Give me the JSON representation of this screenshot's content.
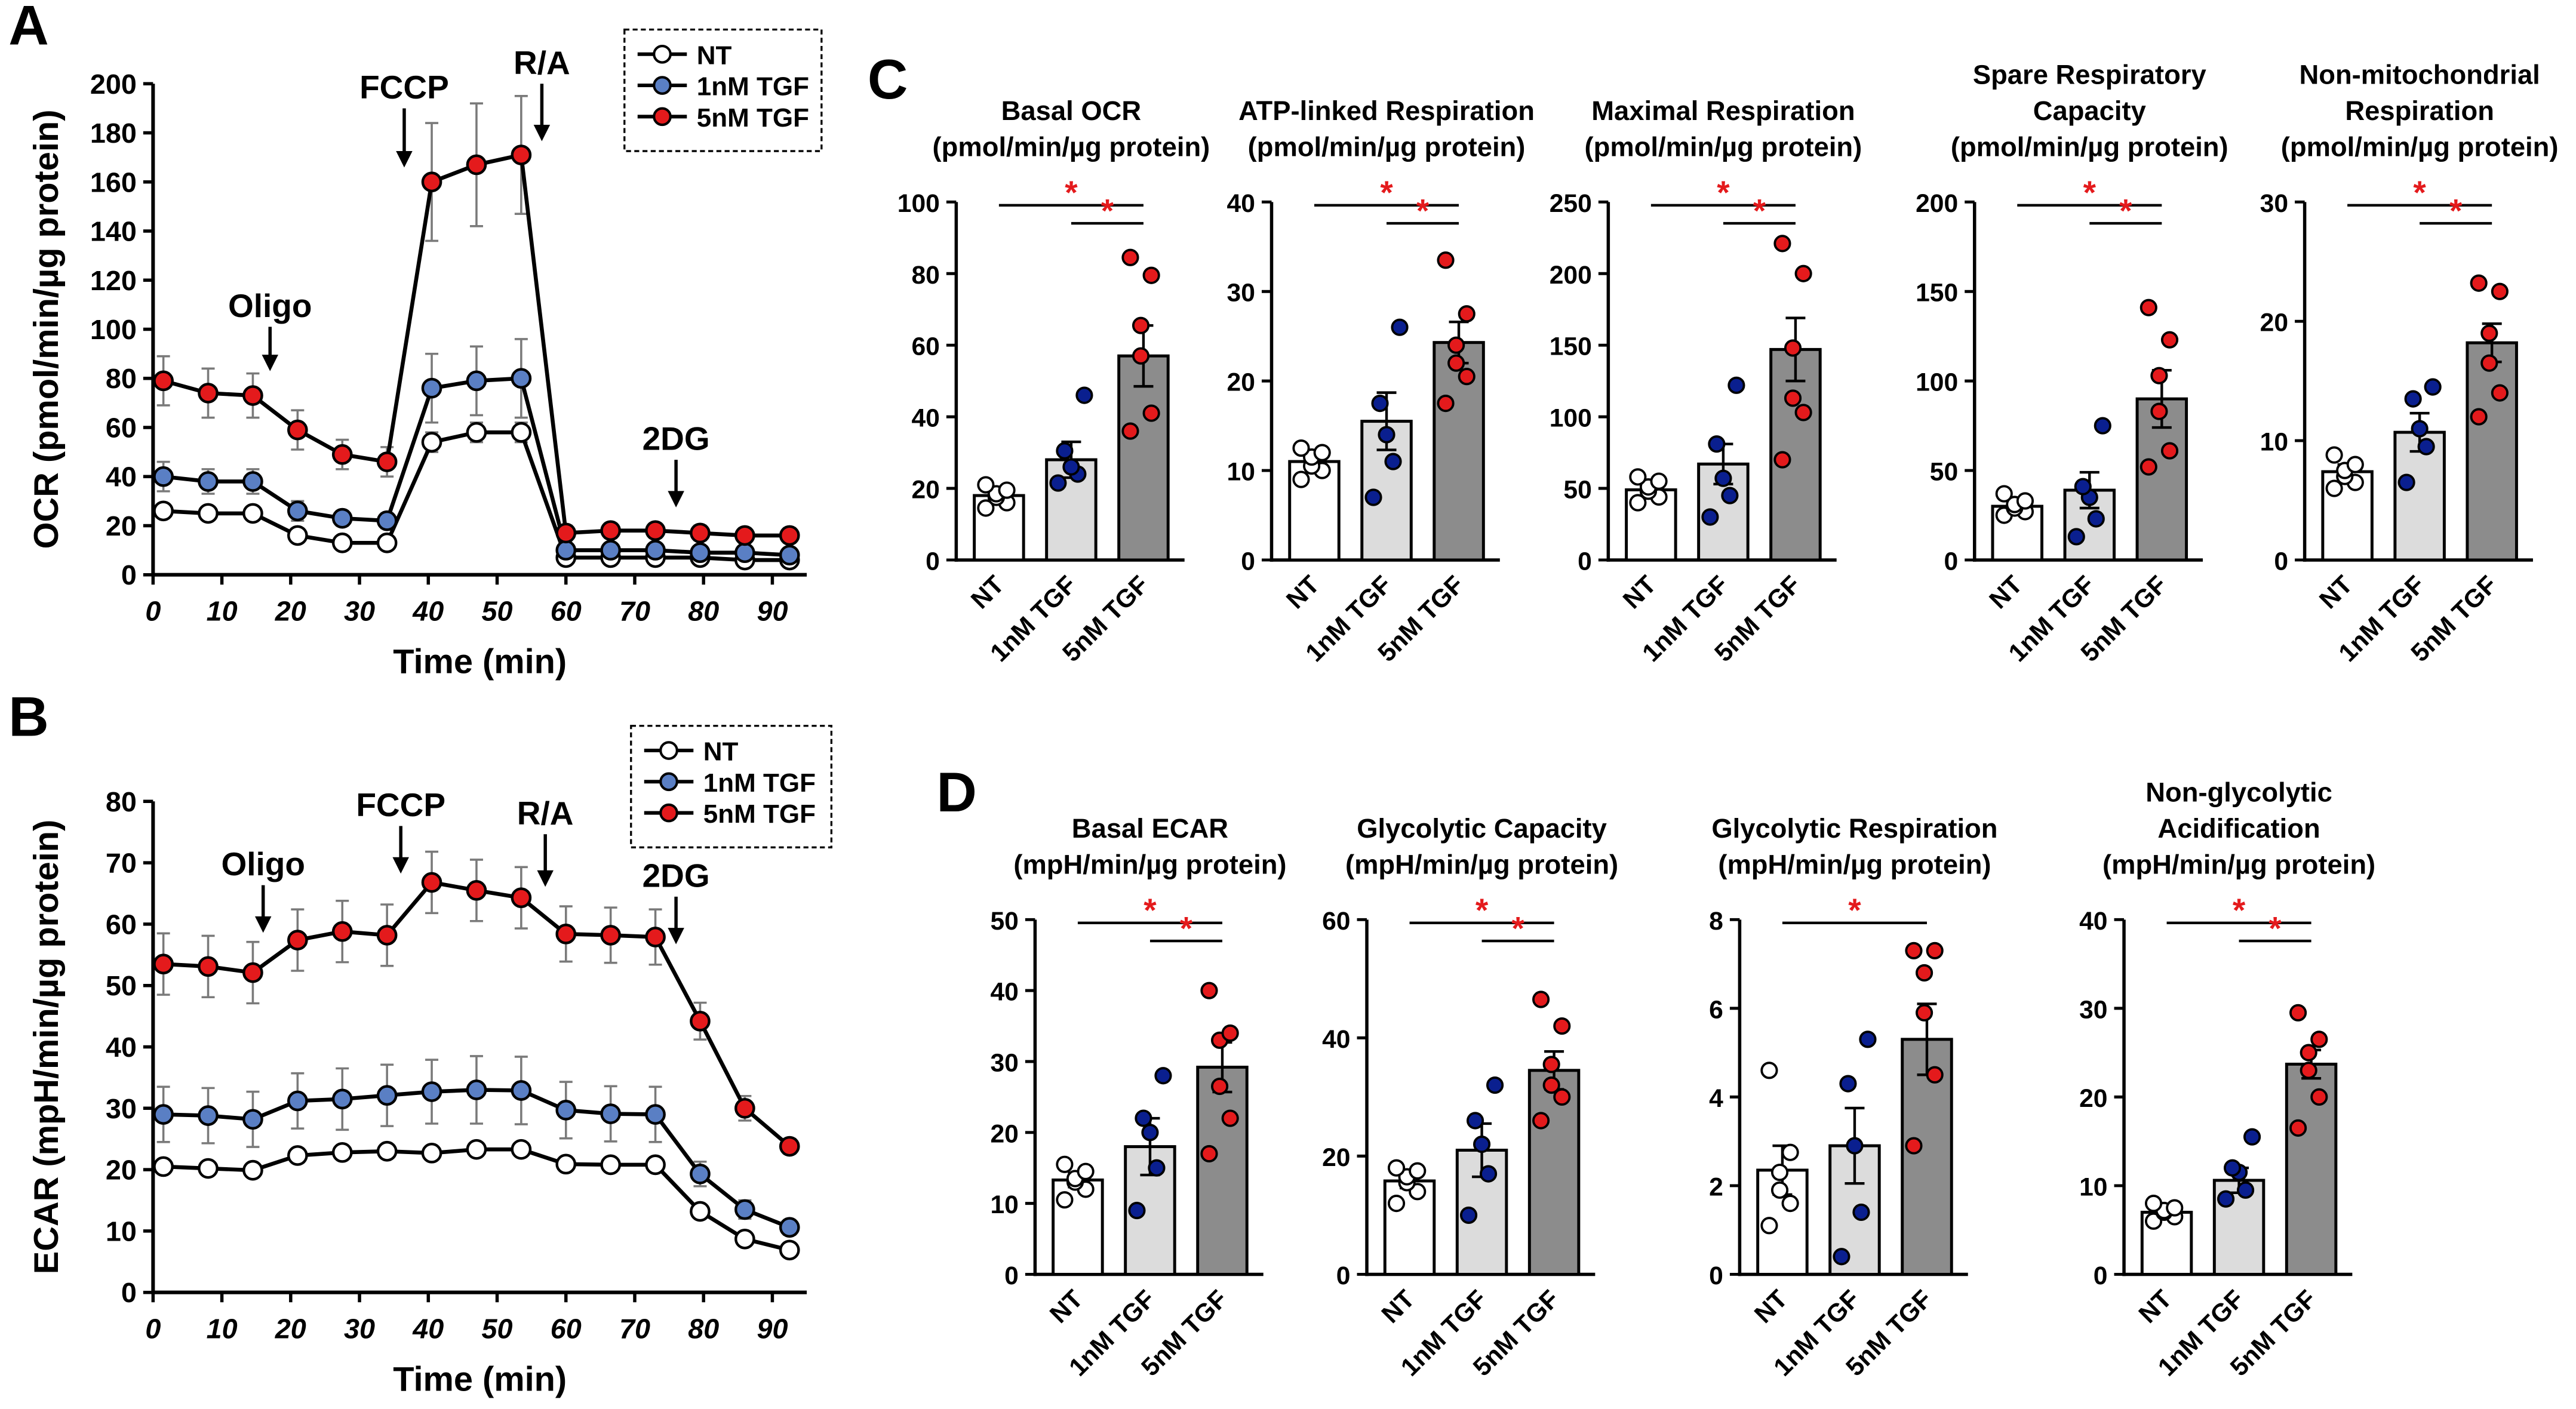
{
  "figure": {
    "panel_letters": [
      "A",
      "B",
      "C",
      "D"
    ],
    "colors": {
      "nt": "#ffffff",
      "tgf1": "#5a7fc4",
      "tgf5": "#e41a1c",
      "bar_nt": "#ffffff",
      "bar_tgf1": "#dcdcdc",
      "bar_tgf5": "#8c8c8c",
      "dot_tgf1": "#0a1f8f",
      "significance": "#e41a1c"
    }
  },
  "chart_data": [
    {
      "panel": "A",
      "type": "line",
      "xlabel": "Time (min)",
      "ylabel": "OCR (pmol/min/µg protein)",
      "xlim": [
        0,
        95
      ],
      "ylim": [
        0,
        200
      ],
      "xticks": [
        0,
        10,
        20,
        30,
        40,
        50,
        60,
        70,
        80,
        90
      ],
      "yticks": [
        0,
        20,
        40,
        60,
        80,
        100,
        120,
        140,
        160,
        180,
        200
      ],
      "x": [
        1.5,
        8,
        14.5,
        21,
        27.5,
        34,
        40.5,
        47,
        53.5,
        60,
        66.5,
        73,
        79.5,
        86,
        92.5
      ],
      "series": [
        {
          "name": "NT",
          "values": [
            26,
            25,
            25,
            16,
            13,
            13,
            54,
            58,
            58,
            7,
            7,
            7,
            7,
            6,
            6
          ],
          "err": [
            2,
            2,
            2,
            1,
            1,
            1,
            4,
            4,
            4,
            1,
            1,
            1,
            1,
            1,
            1
          ]
        },
        {
          "name": "1nM TGF",
          "values": [
            40,
            38,
            38,
            26,
            23,
            22,
            76,
            79,
            80,
            10,
            10,
            10,
            9,
            9,
            8
          ],
          "err": [
            6,
            5,
            5,
            4,
            3,
            3,
            14,
            14,
            16,
            2,
            2,
            2,
            2,
            2,
            2
          ]
        },
        {
          "name": "5nM TGF",
          "values": [
            79,
            74,
            73,
            59,
            49,
            46,
            160,
            167,
            171,
            17,
            18,
            18,
            17,
            16,
            16
          ],
          "err": [
            10,
            10,
            9,
            8,
            6,
            6,
            24,
            25,
            24,
            3,
            3,
            3,
            3,
            3,
            3
          ]
        }
      ],
      "annotations": [
        {
          "text": "Oligo",
          "x": 17
        },
        {
          "text": "FCCP",
          "x": 36.5
        },
        {
          "text": "R/A",
          "x": 56.5
        },
        {
          "text": "2DG",
          "x": 76
        }
      ]
    },
    {
      "panel": "B",
      "type": "line",
      "xlabel": "Time (min)",
      "ylabel": "ECAR (mpH/min/µg protein)",
      "xlim": [
        0,
        95
      ],
      "ylim": [
        0,
        80
      ],
      "xticks": [
        0,
        10,
        20,
        30,
        40,
        50,
        60,
        70,
        80,
        90
      ],
      "yticks": [
        0,
        10,
        20,
        30,
        40,
        50,
        60,
        70,
        80
      ],
      "x": [
        1.5,
        8,
        14.5,
        21,
        27.5,
        34,
        40.5,
        47,
        53.5,
        60,
        66.5,
        73,
        79.5,
        86,
        92.5
      ],
      "series": [
        {
          "name": "NT",
          "values": [
            20.5,
            20.2,
            19.9,
            22.3,
            22.8,
            23,
            22.7,
            23.3,
            23.3,
            20.9,
            20.8,
            20.8,
            13.2,
            8.7,
            6.9
          ],
          "err": [
            0.8,
            0.8,
            0.8,
            0.8,
            0.8,
            0.8,
            0.8,
            0.8,
            0.8,
            0.8,
            0.8,
            0.8,
            0.8,
            0.8,
            0.8
          ]
        },
        {
          "name": "1nM TGF",
          "values": [
            29,
            28.8,
            28.2,
            31.2,
            31.5,
            32.1,
            32.7,
            33,
            32.9,
            29.7,
            29.1,
            29,
            19.3,
            13.5,
            10.6
          ],
          "err": [
            4.5,
            4.5,
            4.5,
            4.5,
            5,
            5,
            5.2,
            5.5,
            5.5,
            4.6,
            4.5,
            4.5,
            2,
            1.5,
            1.2
          ]
        },
        {
          "name": "5nM TGF",
          "values": [
            53.5,
            53.1,
            52.1,
            57.4,
            58.8,
            58.2,
            66.8,
            65.5,
            64.3,
            58.4,
            58.2,
            57.9,
            44.2,
            30,
            23.8
          ],
          "err": [
            5,
            5,
            5,
            5,
            5,
            5,
            5,
            5,
            5,
            4.5,
            4.5,
            4.5,
            3,
            2,
            1.2
          ]
        }
      ],
      "annotations": [
        {
          "text": "Oligo",
          "x": 16
        },
        {
          "text": "FCCP",
          "x": 36
        },
        {
          "text": "R/A",
          "x": 57
        },
        {
          "text": "2DG",
          "x": 76
        }
      ]
    },
    {
      "panel": "C",
      "type": "bar",
      "title": [
        "Basal OCR",
        "(pmol/min/µg protein)"
      ],
      "categories": [
        "NT",
        "1nM TGF",
        "5nM TGF"
      ],
      "means": [
        18,
        28,
        57
      ],
      "sem": [
        1.2,
        5,
        8.5
      ],
      "ylim": [
        0,
        100
      ],
      "yticks": [
        0,
        20,
        40,
        60,
        80,
        100
      ],
      "points": [
        [
          14.5,
          16,
          17.5,
          18.5,
          19.5,
          21
        ],
        [
          21.5,
          24,
          26,
          30.5,
          46
        ],
        [
          36,
          41,
          57,
          65.5,
          79.5,
          84.5
        ]
      ],
      "significance": [
        [
          "NT",
          "5nM TGF"
        ],
        [
          "1nM TGF",
          "5nM TGF"
        ]
      ]
    },
    {
      "panel": "C",
      "type": "bar",
      "title": [
        "ATP-linked Respiration",
        "(pmol/min/µg protein)"
      ],
      "categories": [
        "NT",
        "1nM TGF",
        "5nM TGF"
      ],
      "means": [
        11,
        15.5,
        24.3
      ],
      "sem": [
        0.8,
        3.2,
        2.3
      ],
      "ylim": [
        0,
        40
      ],
      "yticks": [
        0,
        10,
        20,
        30,
        40
      ],
      "points": [
        [
          9,
          10,
          10.5,
          11.5,
          12,
          12.5
        ],
        [
          7,
          11,
          14,
          17.5,
          26
        ],
        [
          17.5,
          20.5,
          22,
          24,
          27.5,
          33.5
        ]
      ],
      "significance": [
        [
          "NT",
          "5nM TGF"
        ],
        [
          "1nM TGF",
          "5nM TGF"
        ]
      ]
    },
    {
      "panel": "C",
      "type": "bar",
      "title": [
        "Maximal Respiration",
        "(pmol/min/µg protein)"
      ],
      "categories": [
        "NT",
        "1nM TGF",
        "5nM TGF"
      ],
      "means": [
        49,
        67,
        147
      ],
      "sem": [
        4,
        14,
        22
      ],
      "ylim": [
        0,
        250
      ],
      "yticks": [
        0,
        50,
        100,
        150,
        200,
        250
      ],
      "points": [
        [
          40,
          44,
          48,
          51,
          55,
          58
        ],
        [
          30,
          45,
          57,
          81,
          122
        ],
        [
          70,
          103,
          113,
          148,
          200,
          221
        ]
      ],
      "significance": [
        [
          "NT",
          "5nM TGF"
        ],
        [
          "1nM TGF",
          "5nM TGF"
        ]
      ]
    },
    {
      "panel": "C",
      "type": "bar",
      "title": [
        "Spare Respiratory",
        "Capacity",
        "(pmol/min/µg protein)"
      ],
      "categories": [
        "NT",
        "1nM TGF",
        "5nM TGF"
      ],
      "means": [
        30,
        39,
        90
      ],
      "sem": [
        3,
        10,
        16
      ],
      "ylim": [
        0,
        200
      ],
      "yticks": [
        0,
        50,
        100,
        150,
        200
      ],
      "points": [
        [
          25,
          27,
          29,
          31,
          33,
          37
        ],
        [
          13,
          23,
          35,
          41,
          75
        ],
        [
          52,
          61,
          83,
          103,
          123,
          141
        ]
      ],
      "significance": [
        [
          "NT",
          "5nM TGF"
        ],
        [
          "1nM TGF",
          "5nM TGF"
        ]
      ]
    },
    {
      "panel": "C",
      "type": "bar",
      "title": [
        "Non-mitochondrial",
        "Respiration",
        "(pmol/min/µg protein)"
      ],
      "categories": [
        "NT",
        "1nM TGF",
        "5nM TGF"
      ],
      "means": [
        7.4,
        10.7,
        18.2
      ],
      "sem": [
        0.6,
        1.6,
        1.6
      ],
      "ylim": [
        0,
        30
      ],
      "yticks": [
        0,
        10,
        20,
        30
      ],
      "points": [
        [
          6,
          6.5,
          7,
          7.5,
          8,
          8.8
        ],
        [
          6.5,
          9.5,
          11,
          13.5,
          14.5
        ],
        [
          12,
          14,
          16.5,
          19,
          22.5,
          23.2
        ]
      ],
      "significance": [
        [
          "NT",
          "5nM TGF"
        ],
        [
          "1nM TGF",
          "5nM TGF"
        ]
      ]
    },
    {
      "panel": "D",
      "type": "bar",
      "title": [
        "Basal ECAR",
        "(mpH/min/µg protein)"
      ],
      "categories": [
        "NT",
        "1nM TGF",
        "5nM TGF"
      ],
      "means": [
        13.3,
        18,
        29.2
      ],
      "sem": [
        1,
        4,
        3.5
      ],
      "ylim": [
        0,
        50
      ],
      "yticks": [
        0,
        10,
        20,
        30,
        40,
        50
      ],
      "points": [
        [
          10.5,
          12,
          13,
          13.5,
          14.5,
          15.5
        ],
        [
          9,
          15,
          20,
          22,
          28
        ],
        [
          17,
          22,
          26.5,
          33,
          34,
          40
        ]
      ],
      "significance": [
        [
          "NT",
          "5nM TGF"
        ],
        [
          "1nM TGF",
          "5nM TGF"
        ]
      ]
    },
    {
      "panel": "D",
      "type": "bar",
      "title": [
        "Glycolytic Capacity",
        "(mpH/min/µg protein)"
      ],
      "categories": [
        "NT",
        "1nM TGF",
        "5nM TGF"
      ],
      "means": [
        15.8,
        21,
        34.5
      ],
      "sem": [
        1.2,
        4.5,
        3.2
      ],
      "ylim": [
        0,
        60
      ],
      "yticks": [
        0,
        20,
        40,
        60
      ],
      "points": [
        [
          12,
          14,
          15.5,
          16.5,
          17.5,
          18
        ],
        [
          10,
          17,
          22,
          26,
          32
        ],
        [
          26,
          30,
          32,
          35.5,
          42,
          46.5
        ]
      ],
      "significance": [
        [
          "NT",
          "5nM TGF"
        ],
        [
          "1nM TGF",
          "5nM TGF"
        ]
      ]
    },
    {
      "panel": "D",
      "type": "bar",
      "title": [
        "Glycolytic Respiration",
        "(mpH/min/µg protein)"
      ],
      "categories": [
        "NT",
        "1nM TGF",
        "5nM TGF"
      ],
      "means": [
        2.35,
        2.9,
        5.3
      ],
      "sem": [
        0.55,
        0.85,
        0.8
      ],
      "ylim": [
        0,
        8
      ],
      "yticks": [
        0,
        2,
        4,
        6,
        8
      ],
      "points": [
        [
          1.1,
          1.6,
          1.9,
          2.3,
          2.75,
          4.6
        ],
        [
          0.4,
          1.4,
          2.9,
          4.3,
          5.3
        ],
        [
          2.9,
          4.5,
          5.9,
          6.8,
          7.3,
          7.3
        ]
      ],
      "significance": [
        [
          "NT",
          "5nM TGF"
        ]
      ]
    },
    {
      "panel": "D",
      "type": "bar",
      "title": [
        "Non-glycolytic",
        "Acidification",
        "(mpH/min/µg protein)"
      ],
      "categories": [
        "NT",
        "1nM TGF",
        "5nM TGF"
      ],
      "means": [
        7,
        10.6,
        23.7
      ],
      "sem": [
        0.4,
        1.4,
        1.6
      ],
      "ylim": [
        0,
        40
      ],
      "yticks": [
        0,
        10,
        20,
        30,
        40
      ],
      "points": [
        [
          6,
          6.5,
          7,
          7.2,
          7.5,
          8
        ],
        [
          8.5,
          9.5,
          11.5,
          12,
          15.5
        ],
        [
          16.5,
          20,
          23,
          25,
          26.5,
          29.5
        ]
      ],
      "significance": [
        [
          "NT",
          "5nM TGF"
        ],
        [
          "1nM TGF",
          "5nM TGF"
        ]
      ]
    }
  ]
}
